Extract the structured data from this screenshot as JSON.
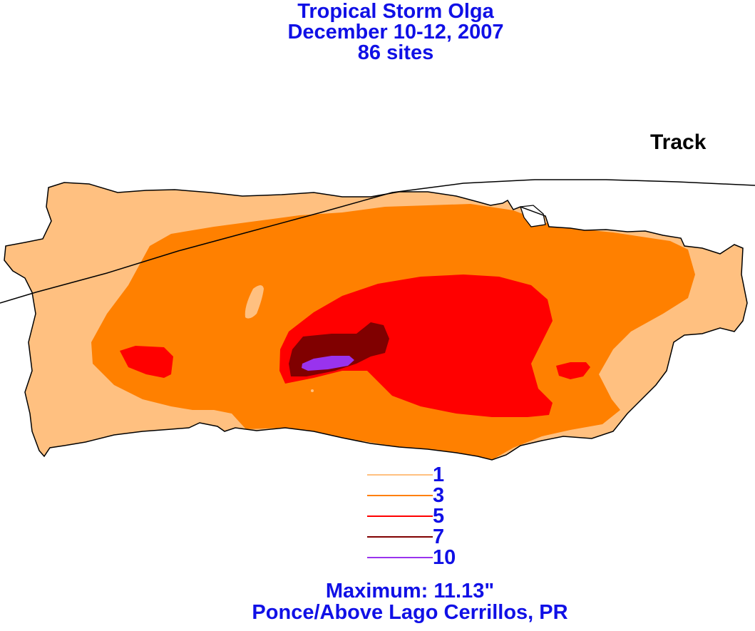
{
  "title": {
    "line1": "Tropical Storm Olga",
    "line2": "December 10-12, 2007",
    "line3": "86 sites"
  },
  "track_label": "Track",
  "legend": [
    {
      "label": "1",
      "color": "#ffc080"
    },
    {
      "label": "3",
      "color": "#ff8000"
    },
    {
      "label": "5",
      "color": "#ff0000"
    },
    {
      "label": "7",
      "color": "#800000"
    },
    {
      "label": "10",
      "color": "#9933ee"
    }
  ],
  "footer": {
    "maximum": "Maximum:  11.13\"",
    "location": "Ponce/Above Lago Cerrillos, PR"
  }
}
